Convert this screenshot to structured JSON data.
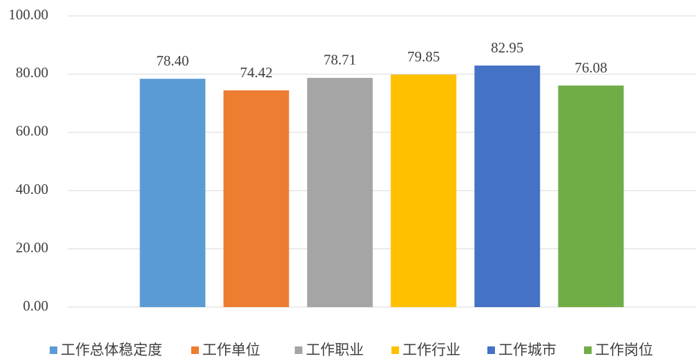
{
  "chart_data": {
    "type": "bar",
    "series": [
      {
        "name": "工作总体稳定度",
        "color": "#5b9bd5",
        "values": [
          78.4
        ],
        "value_labels": [
          "78.40"
        ]
      },
      {
        "name": "工作单位",
        "color": "#ed7d31",
        "values": [
          74.42
        ],
        "value_labels": [
          "74.42"
        ]
      },
      {
        "name": "工作职业",
        "color": "#a5a5a5",
        "values": [
          78.71
        ],
        "value_labels": [
          "78.71"
        ]
      },
      {
        "name": "工作行业",
        "color": "#ffc000",
        "values": [
          79.85
        ],
        "value_labels": [
          "79.85"
        ]
      },
      {
        "name": "工作城市",
        "color": "#4472c4",
        "values": [
          82.95
        ],
        "value_labels": [
          "82.95"
        ]
      },
      {
        "name": "工作岗位",
        "color": "#70ad47",
        "values": [
          76.08
        ],
        "value_labels": [
          "76.08"
        ]
      }
    ],
    "ylim": [
      0,
      100
    ],
    "yticks": [
      {
        "value": 0,
        "label": "0.00"
      },
      {
        "value": 20,
        "label": "20.00"
      },
      {
        "value": 40,
        "label": "40.00"
      },
      {
        "value": 60,
        "label": "60.00"
      },
      {
        "value": 80,
        "label": "80.00"
      },
      {
        "value": 100,
        "label": "100.00"
      }
    ],
    "grid": true,
    "legend": "bottom"
  }
}
